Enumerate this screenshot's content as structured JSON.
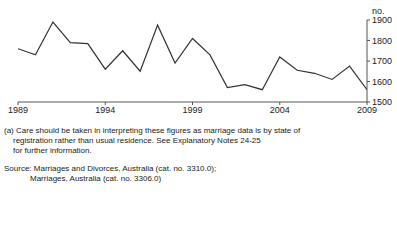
{
  "chart_data": {
    "type": "line",
    "y_label": "no.",
    "x": [
      1989,
      1990,
      1991,
      1992,
      1993,
      1994,
      1995,
      1996,
      1997,
      1998,
      1999,
      2000,
      2001,
      2002,
      2003,
      2004,
      2005,
      2006,
      2007,
      2008,
      2009
    ],
    "values": [
      1760,
      1730,
      1890,
      1790,
      1785,
      1660,
      1750,
      1650,
      1875,
      1690,
      1810,
      1730,
      1570,
      1585,
      1560,
      1720,
      1655,
      1640,
      1610,
      1675,
      1560
    ],
    "color": "#333333",
    "xlim": [
      1989,
      2009
    ],
    "xticks": [
      1989,
      1994,
      1999,
      2004,
      2009
    ],
    "ylim": [
      1500,
      1900
    ],
    "yticks": [
      1500,
      1600,
      1700,
      1800,
      1900
    ],
    "grid": false,
    "annotations": [
      "(a) Care should be taken in interpreting these figures as marriage data is by state of",
      "registration rather than usual residence. See Explanatory Notes 24-25",
      "for further information.",
      "Source: Marriages and Divorces, Australia (cat. no. 3310.0);",
      "Marriages, Australia (cat. no. 3306.0)"
    ]
  }
}
